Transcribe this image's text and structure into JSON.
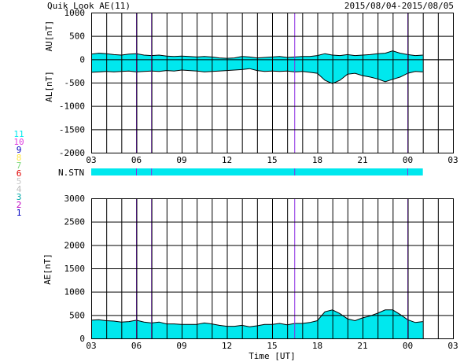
{
  "header": {
    "title": "Quik Look AE(11)",
    "date_range": "2015/08/04-2015/08/05"
  },
  "colors": {
    "fill": "#00e8ee",
    "station_bar": "#00e8ee",
    "marker": "#8a2be2",
    "grid": "#000000"
  },
  "station_legend": [
    {
      "num": "11",
      "color": "#00e8ee"
    },
    {
      "num": "10",
      "color": "#e040e0"
    },
    {
      "num": "9",
      "color": "#0000c0"
    },
    {
      "num": "8",
      "color": "#ffe84a"
    },
    {
      "num": "7",
      "color": "#7ed87e"
    },
    {
      "num": "6",
      "color": "#e00000"
    },
    {
      "num": "5",
      "color": "#c8c8c8"
    },
    {
      "num": "4",
      "color": "#b8b8b8"
    },
    {
      "num": "3",
      "color": "#00a8a8"
    },
    {
      "num": "2",
      "color": "#c000c0"
    },
    {
      "num": "1",
      "color": "#0000c0"
    }
  ],
  "station_label": "N.STN",
  "x_label": "Time [UT]",
  "chart_data": [
    {
      "type": "area",
      "name": "AU-AL",
      "ylabel_top": "AU[nT]",
      "ylabel_bottom": "AL[nT]",
      "ylim": [
        -2000,
        1000
      ],
      "y_ticks": [
        1000,
        500,
        0,
        -500,
        -1000,
        -1500,
        -2000
      ],
      "x_ticks": [
        "03",
        "06",
        "09",
        "12",
        "15",
        "18",
        "21",
        "00",
        "03"
      ],
      "x_unit": "hours UT from 2015/08/04 03:00",
      "x_range": [
        0,
        24
      ],
      "data_end": 22,
      "grid": true,
      "marker_times": [
        3.0,
        4.0,
        13.5,
        21.0
      ],
      "x": [
        0,
        0.5,
        1,
        1.5,
        2,
        2.5,
        3,
        3.5,
        4,
        4.5,
        5,
        5.5,
        6,
        6.5,
        7,
        7.5,
        8,
        8.5,
        9,
        9.5,
        10,
        10.5,
        11,
        11.5,
        12,
        12.5,
        13,
        13.5,
        14,
        14.5,
        15,
        15.5,
        16,
        16.5,
        17,
        17.5,
        18,
        18.5,
        19,
        19.5,
        20,
        20.5,
        21,
        21.5,
        22
      ],
      "au": [
        110,
        130,
        120,
        100,
        90,
        110,
        120,
        90,
        80,
        90,
        70,
        60,
        70,
        60,
        50,
        60,
        50,
        30,
        20,
        30,
        60,
        50,
        30,
        40,
        50,
        60,
        40,
        50,
        60,
        60,
        80,
        120,
        90,
        80,
        100,
        80,
        90,
        100,
        120,
        130,
        180,
        130,
        100,
        80,
        90
      ],
      "al": [
        -280,
        -270,
        -260,
        -270,
        -260,
        -250,
        -270,
        -260,
        -250,
        -260,
        -240,
        -250,
        -230,
        -240,
        -250,
        -270,
        -260,
        -250,
        -240,
        -230,
        -220,
        -200,
        -240,
        -260,
        -250,
        -260,
        -250,
        -270,
        -260,
        -280,
        -300,
        -450,
        -520,
        -450,
        -320,
        -300,
        -350,
        -380,
        -420,
        -480,
        -430,
        -380,
        -300,
        -260,
        -270
      ]
    },
    {
      "type": "area",
      "name": "AE",
      "ylabel": "AE[nT]",
      "ylim": [
        0,
        3000
      ],
      "y_ticks": [
        3000,
        2500,
        2000,
        1500,
        1000,
        500,
        0
      ],
      "x_ticks": [
        "03",
        "06",
        "09",
        "12",
        "15",
        "18",
        "21",
        "00",
        "03"
      ],
      "x_unit": "hours UT from 2015/08/04 03:00",
      "x_range": [
        0,
        24
      ],
      "data_end": 22,
      "grid": true,
      "marker_times": [
        3.0,
        4.0,
        13.5,
        21.0
      ],
      "x": [
        0,
        0.5,
        1,
        1.5,
        2,
        2.5,
        3,
        3.5,
        4,
        4.5,
        5,
        5.5,
        6,
        6.5,
        7,
        7.5,
        8,
        8.5,
        9,
        9.5,
        10,
        10.5,
        11,
        11.5,
        12,
        12.5,
        13,
        13.5,
        14,
        14.5,
        15,
        15.5,
        16,
        16.5,
        17,
        17.5,
        18,
        18.5,
        19,
        19.5,
        20,
        20.5,
        21,
        21.5,
        22
      ],
      "values": [
        390,
        400,
        380,
        370,
        350,
        360,
        390,
        350,
        330,
        350,
        310,
        310,
        300,
        300,
        300,
        330,
        310,
        280,
        260,
        260,
        280,
        250,
        270,
        300,
        300,
        320,
        290,
        320,
        320,
        340,
        380,
        570,
        610,
        530,
        420,
        380,
        440,
        480,
        540,
        610,
        610,
        510,
        400,
        340,
        360
      ]
    }
  ]
}
